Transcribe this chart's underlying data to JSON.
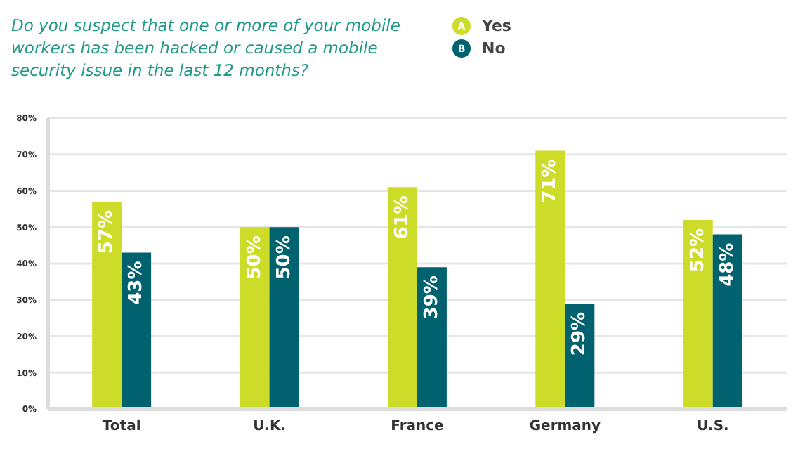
{
  "chart_data": {
    "type": "bar",
    "title": "Do you suspect that one or more of your mobile workers has been hacked or caused a mobile security issue in the last 12 months?",
    "categories": [
      "Total",
      "U.K.",
      "France",
      "Germany",
      "U.S."
    ],
    "series": [
      {
        "name": "Yes",
        "color": "#cddc29",
        "values": [
          57,
          50,
          61,
          71,
          52
        ],
        "value_labels": [
          "57%",
          "50%",
          "61%",
          "71%",
          "52%"
        ]
      },
      {
        "name": "No",
        "color": "#00626e",
        "values": [
          43,
          50,
          39,
          29,
          48
        ],
        "value_labels": [
          "43%",
          "50%",
          "39%",
          "29%",
          "48%"
        ]
      }
    ],
    "ylim": [
      0,
      80
    ],
    "yticks": [
      {
        "value": 0,
        "label": "0%"
      },
      {
        "value": 10,
        "label": "10%"
      },
      {
        "value": 20,
        "label": "20%"
      },
      {
        "value": 30,
        "label": "30%"
      },
      {
        "value": 40,
        "label": "40%"
      },
      {
        "value": 50,
        "label": "50%"
      },
      {
        "value": 60,
        "label": "60%"
      },
      {
        "value": 70,
        "label": "70%"
      },
      {
        "value": 80,
        "label": "80%"
      }
    ],
    "grid": "y",
    "legend": "top",
    "annotations": [
      "A",
      "B"
    ]
  }
}
